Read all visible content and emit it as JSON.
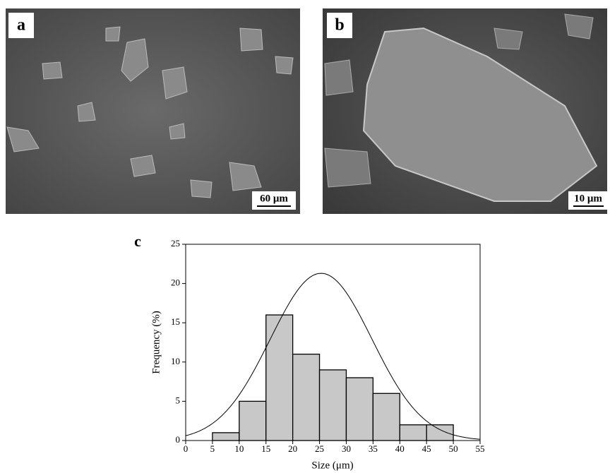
{
  "panels": [
    {
      "label": "a",
      "scale_bar": "60 μm"
    },
    {
      "label": "b",
      "scale_bar": "10 μm"
    }
  ],
  "chart_data": {
    "type": "histogram",
    "label": "c",
    "x_label": "Size (μm)",
    "y_label": "Frequency (%)",
    "bins": [
      5,
      10,
      15,
      20,
      25,
      30,
      35,
      40,
      45,
      50
    ],
    "values": [
      1,
      5,
      16,
      11,
      9,
      8,
      6,
      2,
      2
    ],
    "color": "#c8c8c8",
    "fit": {
      "mean": 25.3,
      "sd": 9.5,
      "peak": 21.3
    },
    "xlim": [
      0,
      55
    ],
    "xticks": [
      0,
      5,
      10,
      15,
      20,
      25,
      30,
      35,
      40,
      45,
      50,
      55
    ],
    "ylim": [
      0,
      25
    ],
    "yticks": [
      0,
      5,
      10,
      15,
      20,
      25
    ]
  }
}
